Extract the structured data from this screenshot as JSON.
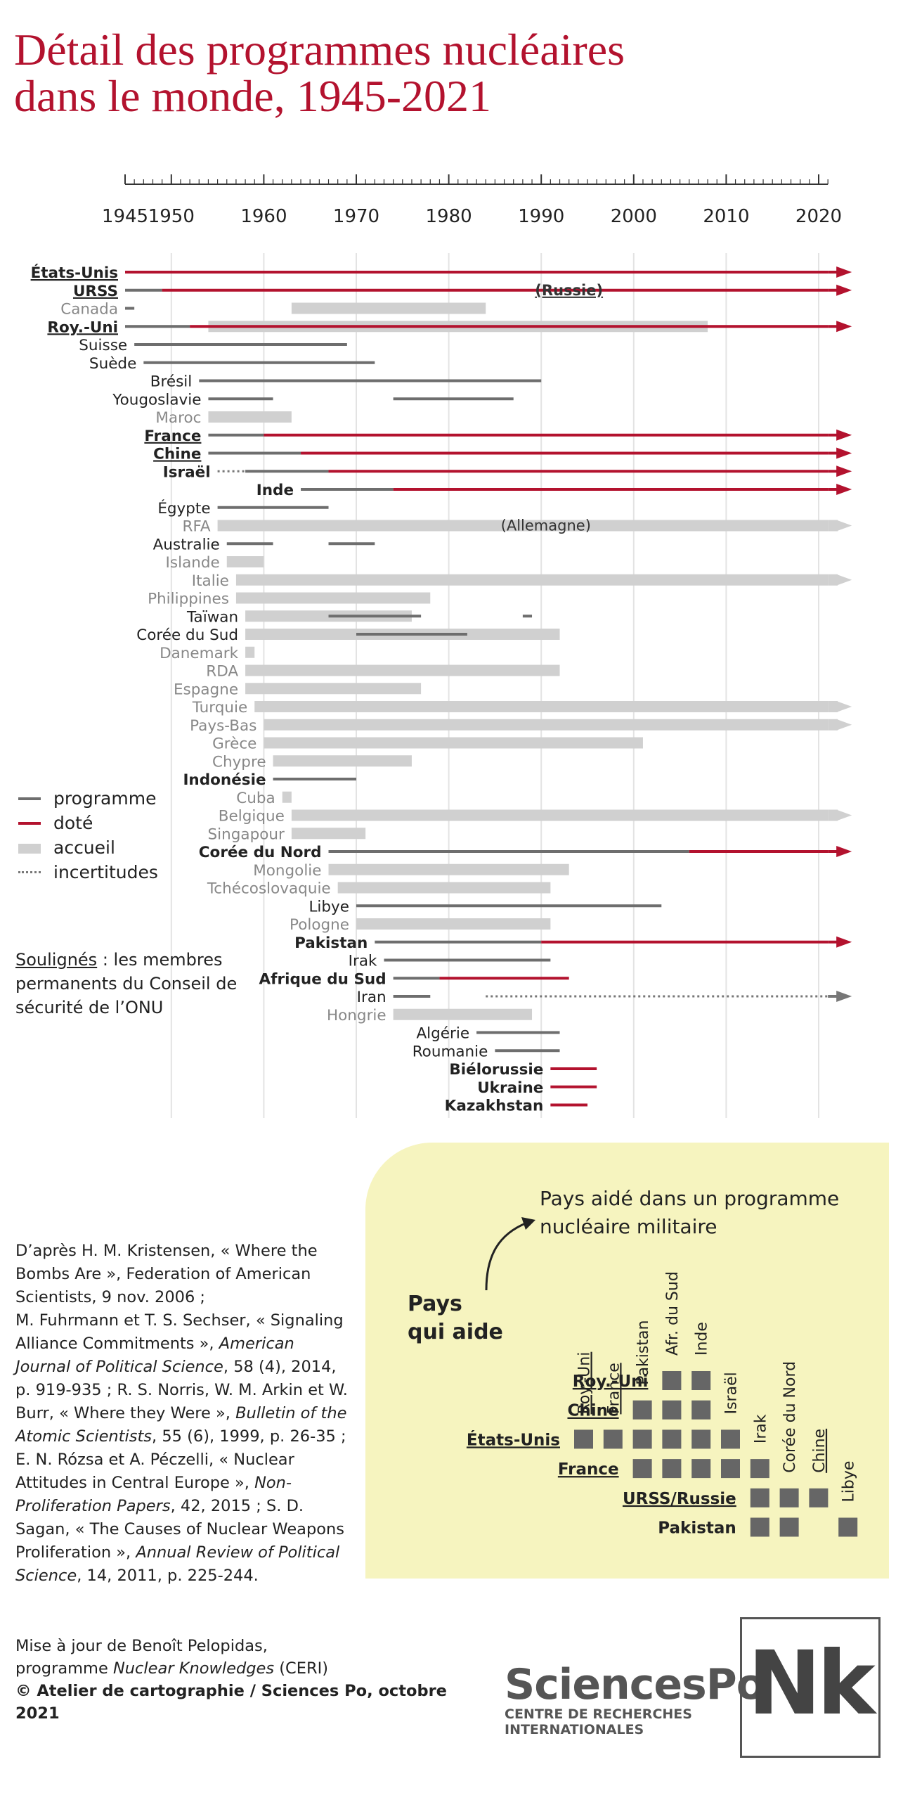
{
  "title_line1": "Détail des programmes nucléaires",
  "title_line2": "dans le monde, 1945-2021",
  "colors": {
    "title": "#b3122e",
    "programme": "#6e6e6e",
    "dote": "#b3122e",
    "accueil": "#d0d0d0",
    "incertitudes": "#777777",
    "panel": "#f6f4bf"
  },
  "legend": {
    "programme": "programme",
    "dote": "doté",
    "accueil": "accueil",
    "incertitudes": "incertitudes"
  },
  "note_underlined": "Soulignés",
  "note_rest": " : les membres permanents du Conseil de sécurité de l’ONU",
  "chart_data": {
    "type": "timeline",
    "x_ticks": [
      1945,
      1950,
      1960,
      1970,
      1980,
      1990,
      2000,
      2010,
      2020
    ],
    "xlim": [
      1945,
      2021
    ],
    "rows": [
      {
        "country": "États-Unis",
        "style": "bold-underline",
        "programme": [
          [
            1945,
            1945
          ]
        ],
        "dote": [
          [
            1945,
            2021
          ]
        ],
        "arrow": "dote"
      },
      {
        "country": "URSS",
        "style": "bold-underline",
        "programme": [
          [
            1945,
            1949
          ]
        ],
        "dote": [
          [
            1949,
            2021
          ]
        ],
        "arrow": "dote",
        "annotation": "(Russie)"
      },
      {
        "country": "Canada",
        "style": "light",
        "programme": [
          [
            1945,
            1946
          ]
        ],
        "accueil": [
          [
            1963,
            1984
          ]
        ]
      },
      {
        "country": "Roy.-Uni",
        "style": "bold-underline",
        "programme": [
          [
            1945,
            1952
          ]
        ],
        "dote": [
          [
            1952,
            2021
          ]
        ],
        "accueil": [
          [
            1954,
            2008
          ]
        ],
        "arrow": "dote"
      },
      {
        "country": "Suisse",
        "style": "plain",
        "programme": [
          [
            1946,
            1969
          ]
        ]
      },
      {
        "country": "Suède",
        "style": "plain",
        "programme": [
          [
            1947,
            1972
          ]
        ]
      },
      {
        "country": "Brésil",
        "style": "plain",
        "programme": [
          [
            1953,
            1990
          ]
        ]
      },
      {
        "country": "Yougoslavie",
        "style": "plain",
        "programme": [
          [
            1954,
            1961
          ],
          [
            1974,
            1987
          ]
        ]
      },
      {
        "country": "Maroc",
        "style": "light",
        "accueil": [
          [
            1954,
            1963
          ]
        ]
      },
      {
        "country": "France",
        "style": "bold-underline",
        "programme": [
          [
            1954,
            1960
          ]
        ],
        "dote": [
          [
            1960,
            2021
          ]
        ],
        "arrow": "dote"
      },
      {
        "country": "Chine",
        "style": "bold-underline",
        "programme": [
          [
            1954,
            1964
          ]
        ],
        "dote": [
          [
            1964,
            2021
          ]
        ],
        "arrow": "dote"
      },
      {
        "country": "Israël",
        "style": "bold",
        "incertitudes": [
          [
            1955,
            1958
          ]
        ],
        "programme": [
          [
            1958,
            1967
          ]
        ],
        "dote": [
          [
            1967,
            2021
          ]
        ],
        "arrow": "dote"
      },
      {
        "country": "Inde",
        "style": "bold",
        "programme": [
          [
            1964,
            1974
          ]
        ],
        "dote": [
          [
            1974,
            2021
          ]
        ],
        "arrow": "dote"
      },
      {
        "country": "Égypte",
        "style": "plain",
        "programme": [
          [
            1955,
            1967
          ]
        ]
      },
      {
        "country": "RFA",
        "style": "light",
        "accueil": [
          [
            1955,
            2021
          ]
        ],
        "arrow": "accueil",
        "annotation": "(Allemagne)"
      },
      {
        "country": "Australie",
        "style": "plain",
        "programme": [
          [
            1956,
            1961
          ],
          [
            1967,
            1972
          ]
        ]
      },
      {
        "country": "Islande",
        "style": "light",
        "accueil": [
          [
            1956,
            1960
          ]
        ]
      },
      {
        "country": "Italie",
        "style": "light",
        "accueil": [
          [
            1957,
            2021
          ]
        ],
        "arrow": "accueil"
      },
      {
        "country": "Philippines",
        "style": "light",
        "accueil": [
          [
            1957,
            1978
          ]
        ]
      },
      {
        "country": "Taïwan",
        "style": "plain",
        "accueil": [
          [
            1958,
            1976
          ]
        ],
        "programme": [
          [
            1967,
            1977
          ],
          [
            1988,
            1989
          ]
        ]
      },
      {
        "country": "Corée du Sud",
        "style": "plain",
        "accueil": [
          [
            1958,
            1992
          ]
        ],
        "programme": [
          [
            1970,
            1982
          ]
        ]
      },
      {
        "country": "Danemark",
        "style": "light",
        "accueil": [
          [
            1958,
            1959
          ]
        ]
      },
      {
        "country": "RDA",
        "style": "light",
        "accueil": [
          [
            1958,
            1992
          ]
        ]
      },
      {
        "country": "Espagne",
        "style": "light",
        "accueil": [
          [
            1958,
            1977
          ]
        ]
      },
      {
        "country": "Turquie",
        "style": "light",
        "accueil": [
          [
            1959,
            2021
          ]
        ],
        "arrow": "accueil"
      },
      {
        "country": "Pays-Bas",
        "style": "light",
        "accueil": [
          [
            1960,
            2021
          ]
        ],
        "arrow": "accueil"
      },
      {
        "country": "Grèce",
        "style": "light",
        "accueil": [
          [
            1960,
            2001
          ]
        ]
      },
      {
        "country": "Chypre",
        "style": "light",
        "accueil": [
          [
            1961,
            1976
          ]
        ]
      },
      {
        "country": "Indonésie",
        "style": "bold",
        "programme": [
          [
            1961,
            1970
          ]
        ]
      },
      {
        "country": "Cuba",
        "style": "light",
        "accueil": [
          [
            1962,
            1963
          ]
        ]
      },
      {
        "country": "Belgique",
        "style": "light",
        "accueil": [
          [
            1963,
            2021
          ]
        ],
        "arrow": "accueil"
      },
      {
        "country": "Singapour",
        "style": "light",
        "accueil": [
          [
            1963,
            1971
          ]
        ]
      },
      {
        "country": "Corée du Nord",
        "style": "bold",
        "programme": [
          [
            1967,
            2006
          ]
        ],
        "dote": [
          [
            2006,
            2021
          ]
        ],
        "arrow": "dote"
      },
      {
        "country": "Mongolie",
        "style": "light",
        "accueil": [
          [
            1967,
            1993
          ]
        ]
      },
      {
        "country": "Tchécoslovaquie",
        "style": "light",
        "accueil": [
          [
            1968,
            1991
          ]
        ]
      },
      {
        "country": "Libye",
        "style": "plain",
        "programme": [
          [
            1970,
            2003
          ]
        ]
      },
      {
        "country": "Pologne",
        "style": "light",
        "accueil": [
          [
            1970,
            1991
          ]
        ]
      },
      {
        "country": "Pakistan",
        "style": "bold",
        "programme": [
          [
            1972,
            1990
          ]
        ],
        "dote": [
          [
            1990,
            2021
          ]
        ],
        "arrow": "dote"
      },
      {
        "country": "Irak",
        "style": "plain",
        "programme": [
          [
            1973,
            1991
          ]
        ]
      },
      {
        "country": "Afrique du Sud",
        "style": "bold",
        "programme": [
          [
            1974,
            1979
          ]
        ],
        "dote": [
          [
            1979,
            1993
          ]
        ]
      },
      {
        "country": "Iran",
        "style": "plain",
        "programme": [
          [
            1974,
            1978
          ]
        ],
        "incertitudes": [
          [
            1984,
            2021
          ]
        ],
        "arrow": "incertitudes"
      },
      {
        "country": "Hongrie",
        "style": "light",
        "accueil": [
          [
            1974,
            1989
          ]
        ]
      },
      {
        "country": "Algérie",
        "style": "plain",
        "programme": [
          [
            1983,
            1992
          ]
        ]
      },
      {
        "country": "Roumanie",
        "style": "plain",
        "programme": [
          [
            1985,
            1992
          ]
        ]
      },
      {
        "country": "Biélorussie",
        "style": "bold",
        "dote": [
          [
            1991,
            1996
          ]
        ]
      },
      {
        "country": "Ukraine",
        "style": "bold",
        "dote": [
          [
            1991,
            1996
          ]
        ]
      },
      {
        "country": "Kazakhstan",
        "style": "bold",
        "dote": [
          [
            1991,
            1995
          ]
        ]
      }
    ]
  },
  "aid_matrix": {
    "title": "Pays aidé dans un programme nucléaire militaire",
    "helper_label_line1": "Pays",
    "helper_label_line2": "qui aide",
    "columns": [
      {
        "name": "Roy.-Uni",
        "underline": true
      },
      {
        "name": "France",
        "underline": true
      },
      {
        "name": "Pakistan",
        "underline": false
      },
      {
        "name": "Afr. du Sud",
        "underline": false
      },
      {
        "name": "Inde",
        "underline": false
      },
      {
        "name": "Israël",
        "underline": false
      },
      {
        "name": "Irak",
        "underline": false
      },
      {
        "name": "Corée du Nord",
        "underline": false
      },
      {
        "name": "Chine",
        "underline": true
      },
      {
        "name": "Libye",
        "underline": false
      }
    ],
    "rows": [
      {
        "name": "Roy.-Uni",
        "cells": [
          3,
          4
        ]
      },
      {
        "name": "Chine",
        "cells": [
          2,
          3,
          4
        ]
      },
      {
        "name": "États-Unis",
        "cells": [
          0,
          1,
          2,
          3,
          4,
          5
        ]
      },
      {
        "name": "France",
        "cells": [
          2,
          3,
          4,
          5,
          6
        ]
      },
      {
        "name": "URSS/Russie",
        "cells": [
          6,
          7,
          8
        ]
      },
      {
        "name": "Pakistan",
        "cells": [
          6,
          7,
          9
        ]
      }
    ]
  },
  "sources": [
    "D’après H. M. Kristensen, « Where the Bombs Are », Federation of American Scientists, 9 nov. 2006 ;",
    "M. Fuhrmann et T. S. Sechser, « Signaling Alliance Commitments », American Journal of Political Science, 58 (4), 2014, p. 919-935 ; R. S. Norris, W. M. Arkin et W. Burr, « Where they Were », Bulletin of the Atomic Scientists, 55 (6), 1999, p. 26-35 ; E. N. Rózsa et A. Péczelli, « Nuclear Attitudes in Central Europe », Non-Proliferation Papers, 42, 2015 ; S. D. Sagan, « The Causes of Nuclear Weapons Proliferation », Annual Review of Political Science, 14, 2011, p. 225-244."
  ],
  "credits": {
    "line1": "Mise à jour de Benoît Pelopidas,",
    "line2_prefix": "programme ",
    "line2_italic": "Nuclear Knowledges",
    "line2_suffix": " (CERI)",
    "line3": "© Atelier de cartographie / Sciences Po, octobre 2021"
  },
  "logo": {
    "name": "SciencesPo",
    "sub1": "CENTRE DE RECHERCHES",
    "sub2": "INTERNATIONALES",
    "nk": "Nk"
  }
}
